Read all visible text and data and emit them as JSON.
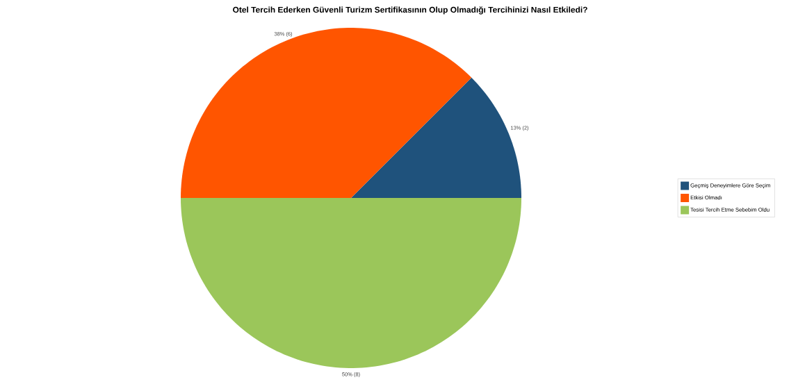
{
  "chart_data": {
    "type": "pie",
    "title": "Otel Tercih Ederken Güvenli Turizm Sertifikasının Olup Olmadığı Tercihinizi Nasıl Etkiledi?",
    "categories": [
      "Geçmiş Deneyimlere Göre Seçim",
      "Etkisi Olmadı",
      "Tesisi Tercih Etme Sebebim Oldu"
    ],
    "values": [
      2,
      6,
      8
    ],
    "colors": [
      "#1f527c",
      "#ff5500",
      "#9bc65a"
    ],
    "value_labels": [
      "13% (2)",
      "38% (6)",
      "50% (8)"
    ],
    "legend": "right"
  }
}
